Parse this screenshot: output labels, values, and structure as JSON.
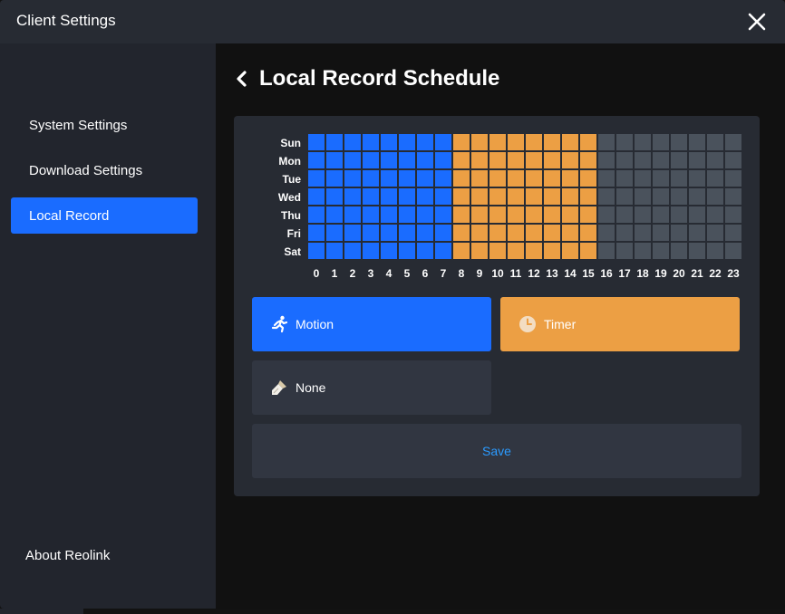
{
  "window": {
    "title": "Client Settings",
    "close_icon": "close-icon"
  },
  "sidebar": {
    "items": [
      {
        "label": "System Settings",
        "active": false
      },
      {
        "label": "Download Settings",
        "active": false
      },
      {
        "label": "Local Record",
        "active": true
      }
    ],
    "about_label": "About Reolink"
  },
  "main": {
    "back_icon": "chevron-left-icon",
    "title": "Local Record Schedule"
  },
  "schedule": {
    "days": [
      "Sun",
      "Mon",
      "Tue",
      "Wed",
      "Thu",
      "Fri",
      "Sat"
    ],
    "hours": [
      "0",
      "1",
      "2",
      "3",
      "4",
      "5",
      "6",
      "7",
      "8",
      "9",
      "10",
      "11",
      "12",
      "13",
      "14",
      "15",
      "16",
      "17",
      "18",
      "19",
      "20",
      "21",
      "22",
      "23"
    ],
    "hour_modes": [
      "motion",
      "motion",
      "motion",
      "motion",
      "motion",
      "motion",
      "motion",
      "motion",
      "timer",
      "timer",
      "timer",
      "timer",
      "timer",
      "timer",
      "timer",
      "timer",
      "none",
      "none",
      "none",
      "none",
      "none",
      "none",
      "none",
      "none"
    ],
    "colors": {
      "motion": "#1a6cff",
      "timer": "#ec9f44",
      "none": "#4a525c"
    }
  },
  "modes": {
    "motion": {
      "label": "Motion",
      "icon": "running-person-icon",
      "color": "#1a6cff"
    },
    "timer": {
      "label": "Timer",
      "icon": "clock-icon",
      "color": "#ec9f44"
    },
    "none": {
      "label": "None",
      "icon": "eraser-brush-icon",
      "color": "#313641"
    }
  },
  "save_label": "Save"
}
